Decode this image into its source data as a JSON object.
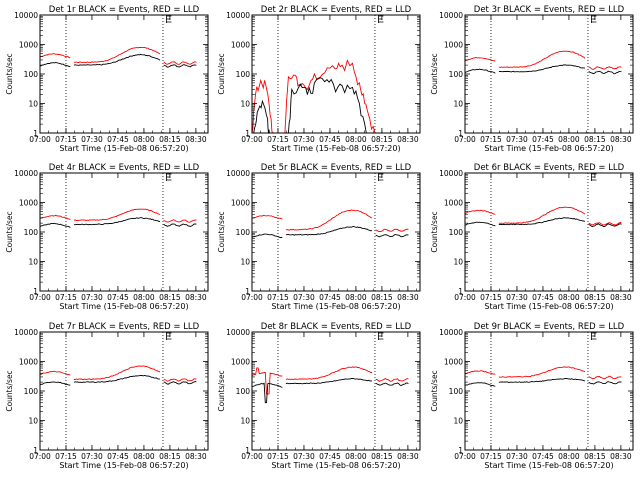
{
  "figure": {
    "xlabel": "Start Time (15-Feb-08 06:57:20)",
    "ylabel": "Counts/sec",
    "x_ticks": [
      "07:00",
      "07:15",
      "07:30",
      "07:45",
      "08:00",
      "08:15",
      "08:30"
    ],
    "y_ticks": [
      "1",
      "10",
      "100",
      "1000",
      "10000"
    ],
    "colors": {
      "events": "#000000",
      "lld": "#ff0000",
      "axes": "#000000",
      "grid": "#000000"
    }
  },
  "chart_data": [
    {
      "type": "line",
      "title": "Det 1r BLACK = Events, RED = LLD",
      "yscale": "log",
      "ylim": [
        1,
        10000
      ],
      "xlim": [
        "07:00",
        "08:37"
      ],
      "marker_lines": [
        "07:15",
        "08:11"
      ],
      "flag_at": "08:13",
      "series": [
        {
          "color": "#ff0000",
          "kind": "smooth",
          "base_high": 400,
          "base_low": 250,
          "peak": 800
        },
        {
          "color": "#000000",
          "kind": "smooth",
          "base_high": 200,
          "base_low": 200,
          "peak": 450
        }
      ]
    },
    {
      "type": "line",
      "title": "Det 2r BLACK = Events, RED = LLD",
      "yscale": "log",
      "ylim": [
        1,
        10000
      ],
      "xlim": [
        "07:00",
        "08:37"
      ],
      "marker_lines": [
        "07:15",
        "08:11"
      ],
      "flag_at": "08:13",
      "series": [
        {
          "color": "#ff0000",
          "kind": "noisy",
          "segments": [
            [
              [
                "07:00",
                1
              ],
              [
                "07:02",
                20
              ],
              [
                "07:05",
                60
              ],
              [
                "07:08",
                40
              ],
              [
                "07:10",
                8
              ],
              [
                "07:12",
                1
              ]
            ],
            [
              [
                "07:19",
                1
              ],
              [
                "07:21",
                80
              ],
              [
                "07:25",
                90
              ],
              [
                "07:28",
                40
              ],
              [
                "07:32",
                30
              ],
              [
                "07:36",
                100
              ],
              [
                "07:42",
                110
              ],
              [
                "07:48",
                150
              ],
              [
                "07:52",
                200
              ],
              [
                "07:58",
                230
              ],
              [
                "08:02",
                50
              ],
              [
                "08:05",
                10
              ],
              [
                "08:08",
                3
              ],
              [
                "08:12",
                1
              ]
            ]
          ]
        },
        {
          "color": "#000000",
          "kind": "noisy",
          "segments": [
            [
              [
                "07:01",
                1
              ],
              [
                "07:03",
                5
              ],
              [
                "07:06",
                12
              ],
              [
                "07:09",
                3
              ],
              [
                "07:10",
                1
              ]
            ],
            [
              [
                "07:21",
                1
              ],
              [
                "07:23",
                30
              ],
              [
                "07:28",
                45
              ],
              [
                "07:32",
                20
              ],
              [
                "07:36",
                50
              ],
              [
                "07:42",
                55
              ],
              [
                "07:47",
                45
              ],
              [
                "07:52",
                40
              ],
              [
                "07:58",
                35
              ],
              [
                "08:02",
                10
              ],
              [
                "08:06",
                1
              ]
            ]
          ]
        }
      ]
    },
    {
      "type": "line",
      "title": "Det 3r BLACK = Events, RED = LLD",
      "yscale": "log",
      "ylim": [
        1,
        10000
      ],
      "xlim": [
        "07:00",
        "08:37"
      ],
      "marker_lines": [
        "07:15",
        "08:11"
      ],
      "flag_at": "08:13",
      "series": [
        {
          "color": "#ff0000",
          "kind": "smooth",
          "base_high": 300,
          "base_low": 170,
          "peak": 600
        },
        {
          "color": "#000000",
          "kind": "smooth",
          "base_high": 120,
          "base_low": 120,
          "peak": 200
        }
      ]
    },
    {
      "type": "line",
      "title": "Det 4r BLACK = Events, RED = LLD",
      "yscale": "log",
      "ylim": [
        1,
        10000
      ],
      "xlim": [
        "07:00",
        "08:37"
      ],
      "marker_lines": [
        "07:15",
        "08:11"
      ],
      "flag_at": "08:13",
      "series": [
        {
          "color": "#ff0000",
          "kind": "smooth",
          "base_high": 300,
          "base_low": 250,
          "peak": 600
        },
        {
          "color": "#000000",
          "kind": "smooth",
          "base_high": 160,
          "base_low": 180,
          "peak": 300
        }
      ]
    },
    {
      "type": "line",
      "title": "Det 5r BLACK = Events, RED = LLD",
      "yscale": "log",
      "ylim": [
        1,
        10000
      ],
      "xlim": [
        "07:00",
        "08:37"
      ],
      "marker_lines": [
        "07:15",
        "08:11"
      ],
      "flag_at": "08:13",
      "series": [
        {
          "color": "#ff0000",
          "kind": "smooth",
          "base_high": 300,
          "base_low": 120,
          "peak": 550
        },
        {
          "color": "#000000",
          "kind": "smooth",
          "base_high": 70,
          "base_low": 80,
          "peak": 150
        }
      ]
    },
    {
      "type": "line",
      "title": "Det 6r BLACK = Events, RED = LLD",
      "yscale": "log",
      "ylim": [
        1,
        10000
      ],
      "xlim": [
        "07:00",
        "08:37"
      ],
      "marker_lines": [
        "07:15",
        "08:11"
      ],
      "flag_at": "08:13",
      "series": [
        {
          "color": "#ff0000",
          "kind": "smooth",
          "base_high": 450,
          "base_low": 200,
          "peak": 700
        },
        {
          "color": "#000000",
          "kind": "smooth",
          "base_high": 180,
          "base_low": 180,
          "peak": 300
        }
      ]
    },
    {
      "type": "line",
      "title": "Det 7r BLACK = Events, RED = LLD",
      "yscale": "log",
      "ylim": [
        1,
        10000
      ],
      "xlim": [
        "07:00",
        "08:37"
      ],
      "marker_lines": [
        "07:15",
        "08:11"
      ],
      "flag_at": "08:13",
      "series": [
        {
          "color": "#ff0000",
          "kind": "smooth",
          "base_high": 380,
          "base_low": 250,
          "peak": 700
        },
        {
          "color": "#000000",
          "kind": "smooth",
          "base_high": 170,
          "base_low": 200,
          "peak": 330
        }
      ]
    },
    {
      "type": "line",
      "title": "Det 8r BLACK = Events, RED = LLD",
      "yscale": "log",
      "ylim": [
        1,
        10000
      ],
      "xlim": [
        "07:00",
        "08:37"
      ],
      "marker_lines": [
        "07:15",
        "08:11"
      ],
      "flag_at": "08:13",
      "series": [
        {
          "color": "#ff0000",
          "kind": "smooth",
          "base_high": 350,
          "base_low": 250,
          "peak": 650,
          "spikes": [
            [
              "07:03",
              600
            ],
            [
              "07:09",
              80
            ]
          ]
        },
        {
          "color": "#000000",
          "kind": "smooth",
          "base_high": 150,
          "base_low": 180,
          "peak": 260,
          "spikes": [
            [
              "07:08",
              40
            ]
          ]
        }
      ]
    },
    {
      "type": "line",
      "title": "Det 9r BLACK = Events, RED = LLD",
      "yscale": "log",
      "ylim": [
        1,
        10000
      ],
      "xlim": [
        "07:00",
        "08:37"
      ],
      "marker_lines": [
        "07:15",
        "08:11"
      ],
      "flag_at": "08:13",
      "series": [
        {
          "color": "#ff0000",
          "kind": "smooth",
          "base_high": 400,
          "base_low": 300,
          "peak": 650
        },
        {
          "color": "#000000",
          "kind": "smooth",
          "base_high": 160,
          "base_low": 200,
          "peak": 260
        }
      ]
    }
  ]
}
